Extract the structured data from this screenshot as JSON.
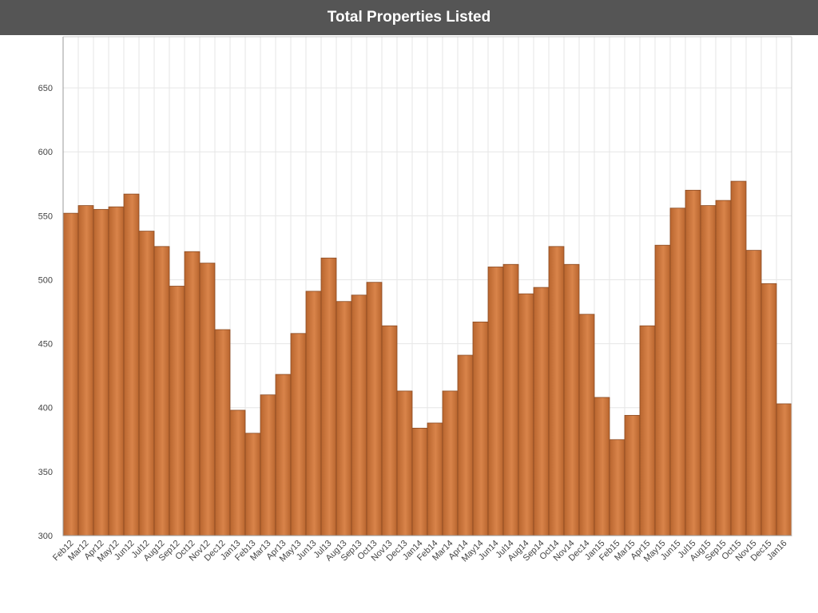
{
  "header": {
    "title": "Total Properties Listed"
  },
  "colors": {
    "bar_light": "#d9844a",
    "bar_dark": "#b8652e",
    "bar_stroke": "#8a4a22",
    "grid": "#e6e6e6",
    "axis": "#999999"
  },
  "chart_data": {
    "type": "bar",
    "title": "Total Properties Listed",
    "xlabel": "",
    "ylabel": "",
    "ylim": [
      300,
      690
    ],
    "yticks": [
      300,
      350,
      400,
      450,
      500,
      550,
      600,
      650
    ],
    "grid": true,
    "categories": [
      "Feb12",
      "Mar12",
      "Apr12",
      "May12",
      "Jun12",
      "Jul12",
      "Aug12",
      "Sep12",
      "Oct12",
      "Nov12",
      "Dec12",
      "Jan13",
      "Feb13",
      "Mar13",
      "Apr13",
      "May13",
      "Jun13",
      "Jul13",
      "Aug13",
      "Sep13",
      "Oct13",
      "Nov13",
      "Dec13",
      "Jan14",
      "Feb14",
      "Mar14",
      "Apr14",
      "May14",
      "Jun14",
      "Jul14",
      "Aug14",
      "Sep14",
      "Oct14",
      "Nov14",
      "Dec14",
      "Jan15",
      "Feb15",
      "Mar15",
      "Apr15",
      "May15",
      "Jun15",
      "Jul15",
      "Aug15",
      "Sep15",
      "Oct15",
      "Nov15",
      "Dec15",
      "Jan16"
    ],
    "values": [
      552,
      558,
      555,
      557,
      567,
      538,
      526,
      495,
      522,
      513,
      461,
      398,
      380,
      410,
      426,
      458,
      491,
      517,
      483,
      488,
      498,
      464,
      413,
      384,
      388,
      413,
      441,
      467,
      510,
      512,
      489,
      494,
      526,
      512,
      473,
      408,
      375,
      394,
      464,
      527,
      556,
      570,
      558,
      562,
      577,
      523,
      497,
      403
    ]
  }
}
